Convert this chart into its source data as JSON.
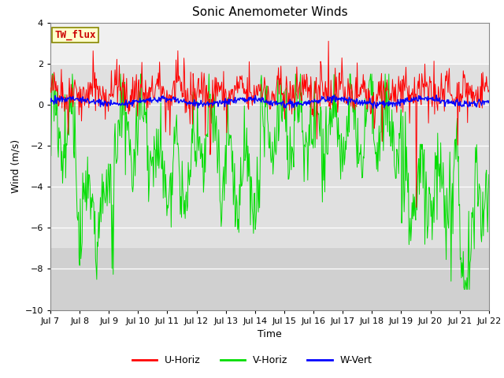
{
  "title": "Sonic Anemometer Winds",
  "xlabel": "Time",
  "ylabel": "Wind (m/s)",
  "ylim": [
    -10,
    4
  ],
  "yticks": [
    -10,
    -8,
    -6,
    -4,
    -2,
    0,
    2,
    4
  ],
  "x_labels": [
    "Jul 7",
    "Jul 8",
    "Jul 9",
    "Jul 10",
    "Jul 11",
    "Jul 12",
    "Jul 13",
    "Jul 14",
    "Jul 15",
    "Jul 16",
    "Jul 17",
    "Jul 18",
    "Jul 19",
    "Jul 20",
    "Jul 21",
    "Jul 22"
  ],
  "x_positions": [
    0,
    1,
    2,
    3,
    4,
    5,
    6,
    7,
    8,
    9,
    10,
    11,
    12,
    13,
    14,
    15
  ],
  "n_days": 15,
  "n_points_per_day": 48,
  "u_horiz_color": "#ff0000",
  "v_horiz_color": "#00dd00",
  "w_vert_color": "#0000ff",
  "background_color": "#ffffff",
  "plot_bg_color": "#ffffff",
  "band_upper_color": "#e8e8e8",
  "band_lower_color": "#d0d0d0",
  "tw_flux_label": "TW_flux",
  "tw_flux_bg": "#ffffcc",
  "tw_flux_border": "#888800",
  "tw_flux_text_color": "#cc0000",
  "legend_entries": [
    "U-Horiz",
    "V-Horiz",
    "W-Vert"
  ],
  "seed": 42,
  "title_fontsize": 11,
  "axis_label_fontsize": 9,
  "tick_fontsize": 8,
  "legend_fontsize": 9
}
